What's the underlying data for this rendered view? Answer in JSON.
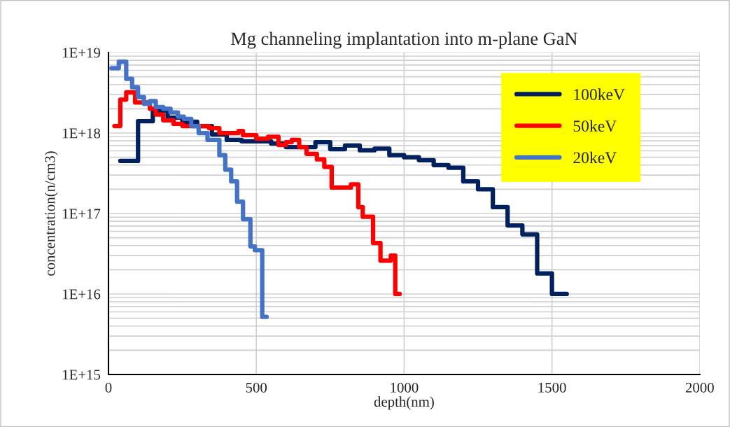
{
  "chart_data": {
    "type": "step",
    "title": "Mg channeling implantation into m-plane GaN",
    "xlabel": "depth(nm)",
    "ylabel": "concentration(n/cm3)",
    "xlim": [
      0,
      2000
    ],
    "xticks": [
      0,
      500,
      1000,
      1500,
      2000
    ],
    "ylim": [
      1000000000000000.0,
      1e+19
    ],
    "yticks": [
      {
        "value": 1000000000000000.0,
        "label": "1E+15"
      },
      {
        "value": 1e+16,
        "label": "1E+16"
      },
      {
        "value": 1e+17,
        "label": "1E+17"
      },
      {
        "value": 1e+18,
        "label": "1E+18"
      },
      {
        "value": 1e+19,
        "label": "1E+19"
      }
    ],
    "log": true,
    "grid": true,
    "legend": "top right",
    "series": [
      {
        "name": "100keV",
        "color": "#002060",
        "x": [
          40,
          100,
          150,
          200,
          250,
          300,
          350,
          400,
          450,
          550,
          600,
          700,
          750,
          800,
          850,
          900,
          950,
          1000,
          1050,
          1100,
          1150,
          1200,
          1250,
          1300,
          1350,
          1400,
          1450,
          1500,
          1550
        ],
        "values": [
          4.5e+17,
          1.4e+18,
          1.9e+18,
          1.55e+18,
          1.38e+18,
          1.22e+18,
          9.6e+17,
          8.2e+17,
          7.9e+17,
          7.4e+17,
          6.7e+17,
          7.7e+17,
          6.3e+17,
          7e+17,
          6.1e+17,
          6.4e+17,
          5.3e+17,
          5e+17,
          4.6e+17,
          4e+17,
          3.7e+17,
          2.5e+17,
          2e+17,
          1.2e+17,
          7.1e+16,
          5.5e+16,
          1.8e+16,
          1e+16,
          1e+16
        ]
      },
      {
        "name": "50keV",
        "color": "#ff0000",
        "x": [
          20,
          40,
          60,
          90,
          140,
          160,
          185,
          220,
          250,
          340,
          375,
          440,
          455,
          500,
          540,
          575,
          600,
          620,
          645,
          670,
          705,
          730,
          755,
          820,
          845,
          860,
          895,
          920,
          955,
          970,
          985
        ],
        "values": [
          1.22e+18,
          2.6e+18,
          3.2e+18,
          2.4e+18,
          2e+18,
          1.7e+18,
          1.44e+18,
          1.3e+18,
          1.22e+18,
          1.15e+18,
          1e+18,
          1.06e+18,
          9.4e+17,
          8.5e+17,
          9e+17,
          7.1e+17,
          7.7e+17,
          8.2e+17,
          6.7e+17,
          5.5e+17,
          4.7e+17,
          3.8e+17,
          2.1e+17,
          2.3e+17,
          1.2e+17,
          9.1e+16,
          4.3e+16,
          2.6e+16,
          3e+16,
          1e+16,
          1e+16
        ]
      },
      {
        "name": "20keV",
        "color": "#4472c4",
        "x": [
          10,
          35,
          60,
          80,
          100,
          120,
          140,
          160,
          185,
          210,
          235,
          255,
          280,
          305,
          335,
          375,
          395,
          415,
          435,
          455,
          480,
          495,
          520,
          535
        ],
        "values": [
          6.4e+18,
          7.7e+18,
          4.7e+18,
          3.7e+18,
          2.8e+18,
          2.3e+18,
          2.5e+18,
          2.1e+18,
          2e+18,
          1.8e+18,
          1.6e+18,
          1.5e+18,
          1.22e+18,
          1e+18,
          8.2e+17,
          5.3e+17,
          3.5e+17,
          2.5e+17,
          1.4e+17,
          8.5e+16,
          3.9e+16,
          3.5e+16,
          5200000000000000.0,
          5200000000000000.0
        ]
      }
    ]
  }
}
